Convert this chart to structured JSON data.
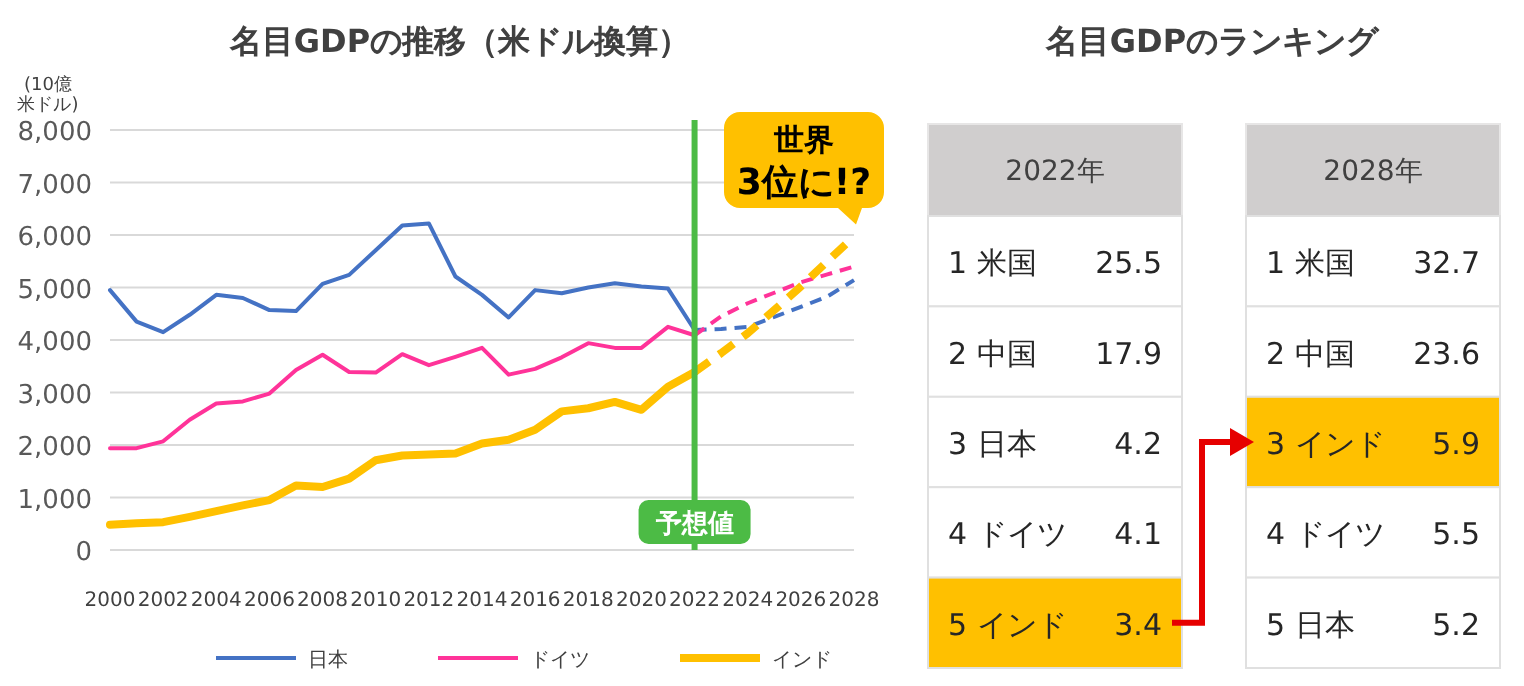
{
  "chart_data": [
    {
      "type": "line",
      "title": "名目GDPの推移（米ドル換算）",
      "ylabel": "(10億米ドル)",
      "x": [
        2000,
        2001,
        2002,
        2003,
        2004,
        2005,
        2006,
        2007,
        2008,
        2009,
        2010,
        2011,
        2012,
        2013,
        2014,
        2015,
        2016,
        2017,
        2018,
        2019,
        2020,
        2021,
        2022
      ],
      "series": [
        {
          "name": "日本",
          "color": "#4472c4",
          "values": [
            4950,
            4350,
            4150,
            4480,
            4860,
            4800,
            4570,
            4550,
            5070,
            5240,
            5710,
            6180,
            6220,
            5210,
            4860,
            4430,
            4950,
            4890,
            5000,
            5080,
            5020,
            4980,
            4190
          ]
        },
        {
          "name": "ドイツ",
          "color": "#ff3399",
          "values": [
            1940,
            1940,
            2070,
            2480,
            2790,
            2830,
            2980,
            3430,
            3720,
            3390,
            3380,
            3730,
            3520,
            3680,
            3850,
            3340,
            3450,
            3670,
            3940,
            3850,
            3850,
            4250,
            4090
          ]
        },
        {
          "name": "インド",
          "color": "#ffc000",
          "values": [
            480,
            510,
            530,
            630,
            740,
            850,
            950,
            1230,
            1200,
            1360,
            1710,
            1800,
            1820,
            1840,
            2030,
            2100,
            2290,
            2640,
            2700,
            2820,
            2670,
            3110,
            3390
          ]
        },
        {
          "color": "#4472c4",
          "line_style": "dashed",
          "x": [
            2022,
            2023,
            2024,
            2025,
            2026,
            2027,
            2028
          ],
          "values": [
            4190,
            4210,
            4250,
            4440,
            4630,
            4830,
            5140
          ]
        },
        {
          "color": "#ff3399",
          "line_style": "dashed",
          "x": [
            2022,
            2023,
            2024,
            2025,
            2026,
            2027,
            2028
          ],
          "values": [
            4090,
            4450,
            4700,
            4900,
            5100,
            5250,
            5400
          ]
        },
        {
          "color": "#ffc000",
          "line_style": "dashed",
          "x": [
            2022,
            2023,
            2024,
            2025,
            2026,
            2027,
            2028
          ],
          "values": [
            3390,
            3750,
            4130,
            4570,
            5020,
            5500,
            5970
          ]
        }
      ],
      "xlim": [
        2000,
        2028
      ],
      "xticks": [
        2000,
        2002,
        2004,
        2006,
        2008,
        2010,
        2012,
        2014,
        2016,
        2018,
        2020,
        2022,
        2024,
        2026,
        2028
      ],
      "ylim": [
        0,
        8000
      ],
      "yticks": [
        {
          "value": 0,
          "label": "0"
        },
        {
          "value": 1000,
          "label": "1,000"
        },
        {
          "value": 2000,
          "label": "2,000"
        },
        {
          "value": 3000,
          "label": "3,000"
        },
        {
          "value": 4000,
          "label": "4,000"
        },
        {
          "value": 5000,
          "label": "5,000"
        },
        {
          "value": 6000,
          "label": "6,000"
        },
        {
          "value": 7000,
          "label": "7,000"
        },
        {
          "value": 8000,
          "label": "8,000"
        }
      ],
      "ref_lines": [
        {
          "axis": "x",
          "value": 2022,
          "label": "予想値",
          "color": "#4cbb45"
        }
      ],
      "annotations": [
        {
          "text": "世界 3位に!?",
          "x": 2028,
          "y": 5970
        }
      ],
      "grid": "y",
      "legend": "bottom",
      "marker": "none",
      "line_style": "solid"
    },
    {
      "type": "heatmap",
      "title": "名目GDPのランキング",
      "categories": [
        "2022年"
      ],
      "y_categories": [
        "1 米国",
        "2 中国",
        "3 日本",
        "4 ドイツ",
        "5 インド"
      ],
      "cells": [
        [
          25.5
        ],
        [
          17.9
        ],
        [
          4.2
        ],
        [
          4.1
        ],
        [
          3.4
        ]
      ],
      "colors": [
        "#ffffff",
        "#ffffff",
        "#ffffff",
        "#ffffff",
        "#ffc000"
      ],
      "data_labels": true
    },
    {
      "type": "heatmap",
      "categories": [
        "2028年"
      ],
      "y_categories": [
        "1 米国",
        "2 中国",
        "3 インド",
        "4 ドイツ",
        "5 日本"
      ],
      "cells": [
        [
          32.7
        ],
        [
          23.6
        ],
        [
          5.9
        ],
        [
          5.5
        ],
        [
          5.2
        ]
      ],
      "colors": [
        "#ffffff",
        "#ffffff",
        "#ffc000",
        "#ffffff",
        "#ffffff"
      ],
      "data_labels": true
    }
  ]
}
